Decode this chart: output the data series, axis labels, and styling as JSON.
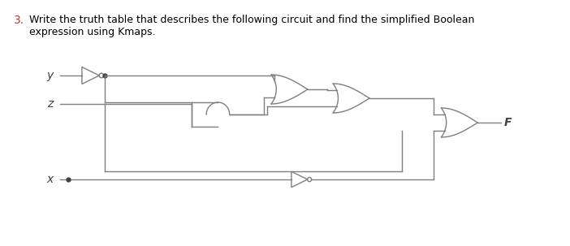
{
  "title_number": "3.",
  "title_color": "#000000",
  "title_number_color": "#c0392b",
  "bg_color": "#ffffff",
  "line_color": "#7f7f7f",
  "text_color": "#404040",
  "figsize": [
    7.02,
    3.03
  ],
  "dpi": 100,
  "line1": "Write the truth table that describes the following circuit and find the simplified Boolean",
  "line2": "expression using Kmaps.",
  "y_label": "y",
  "z_label": "z",
  "x_label": "x",
  "F_label": "F"
}
